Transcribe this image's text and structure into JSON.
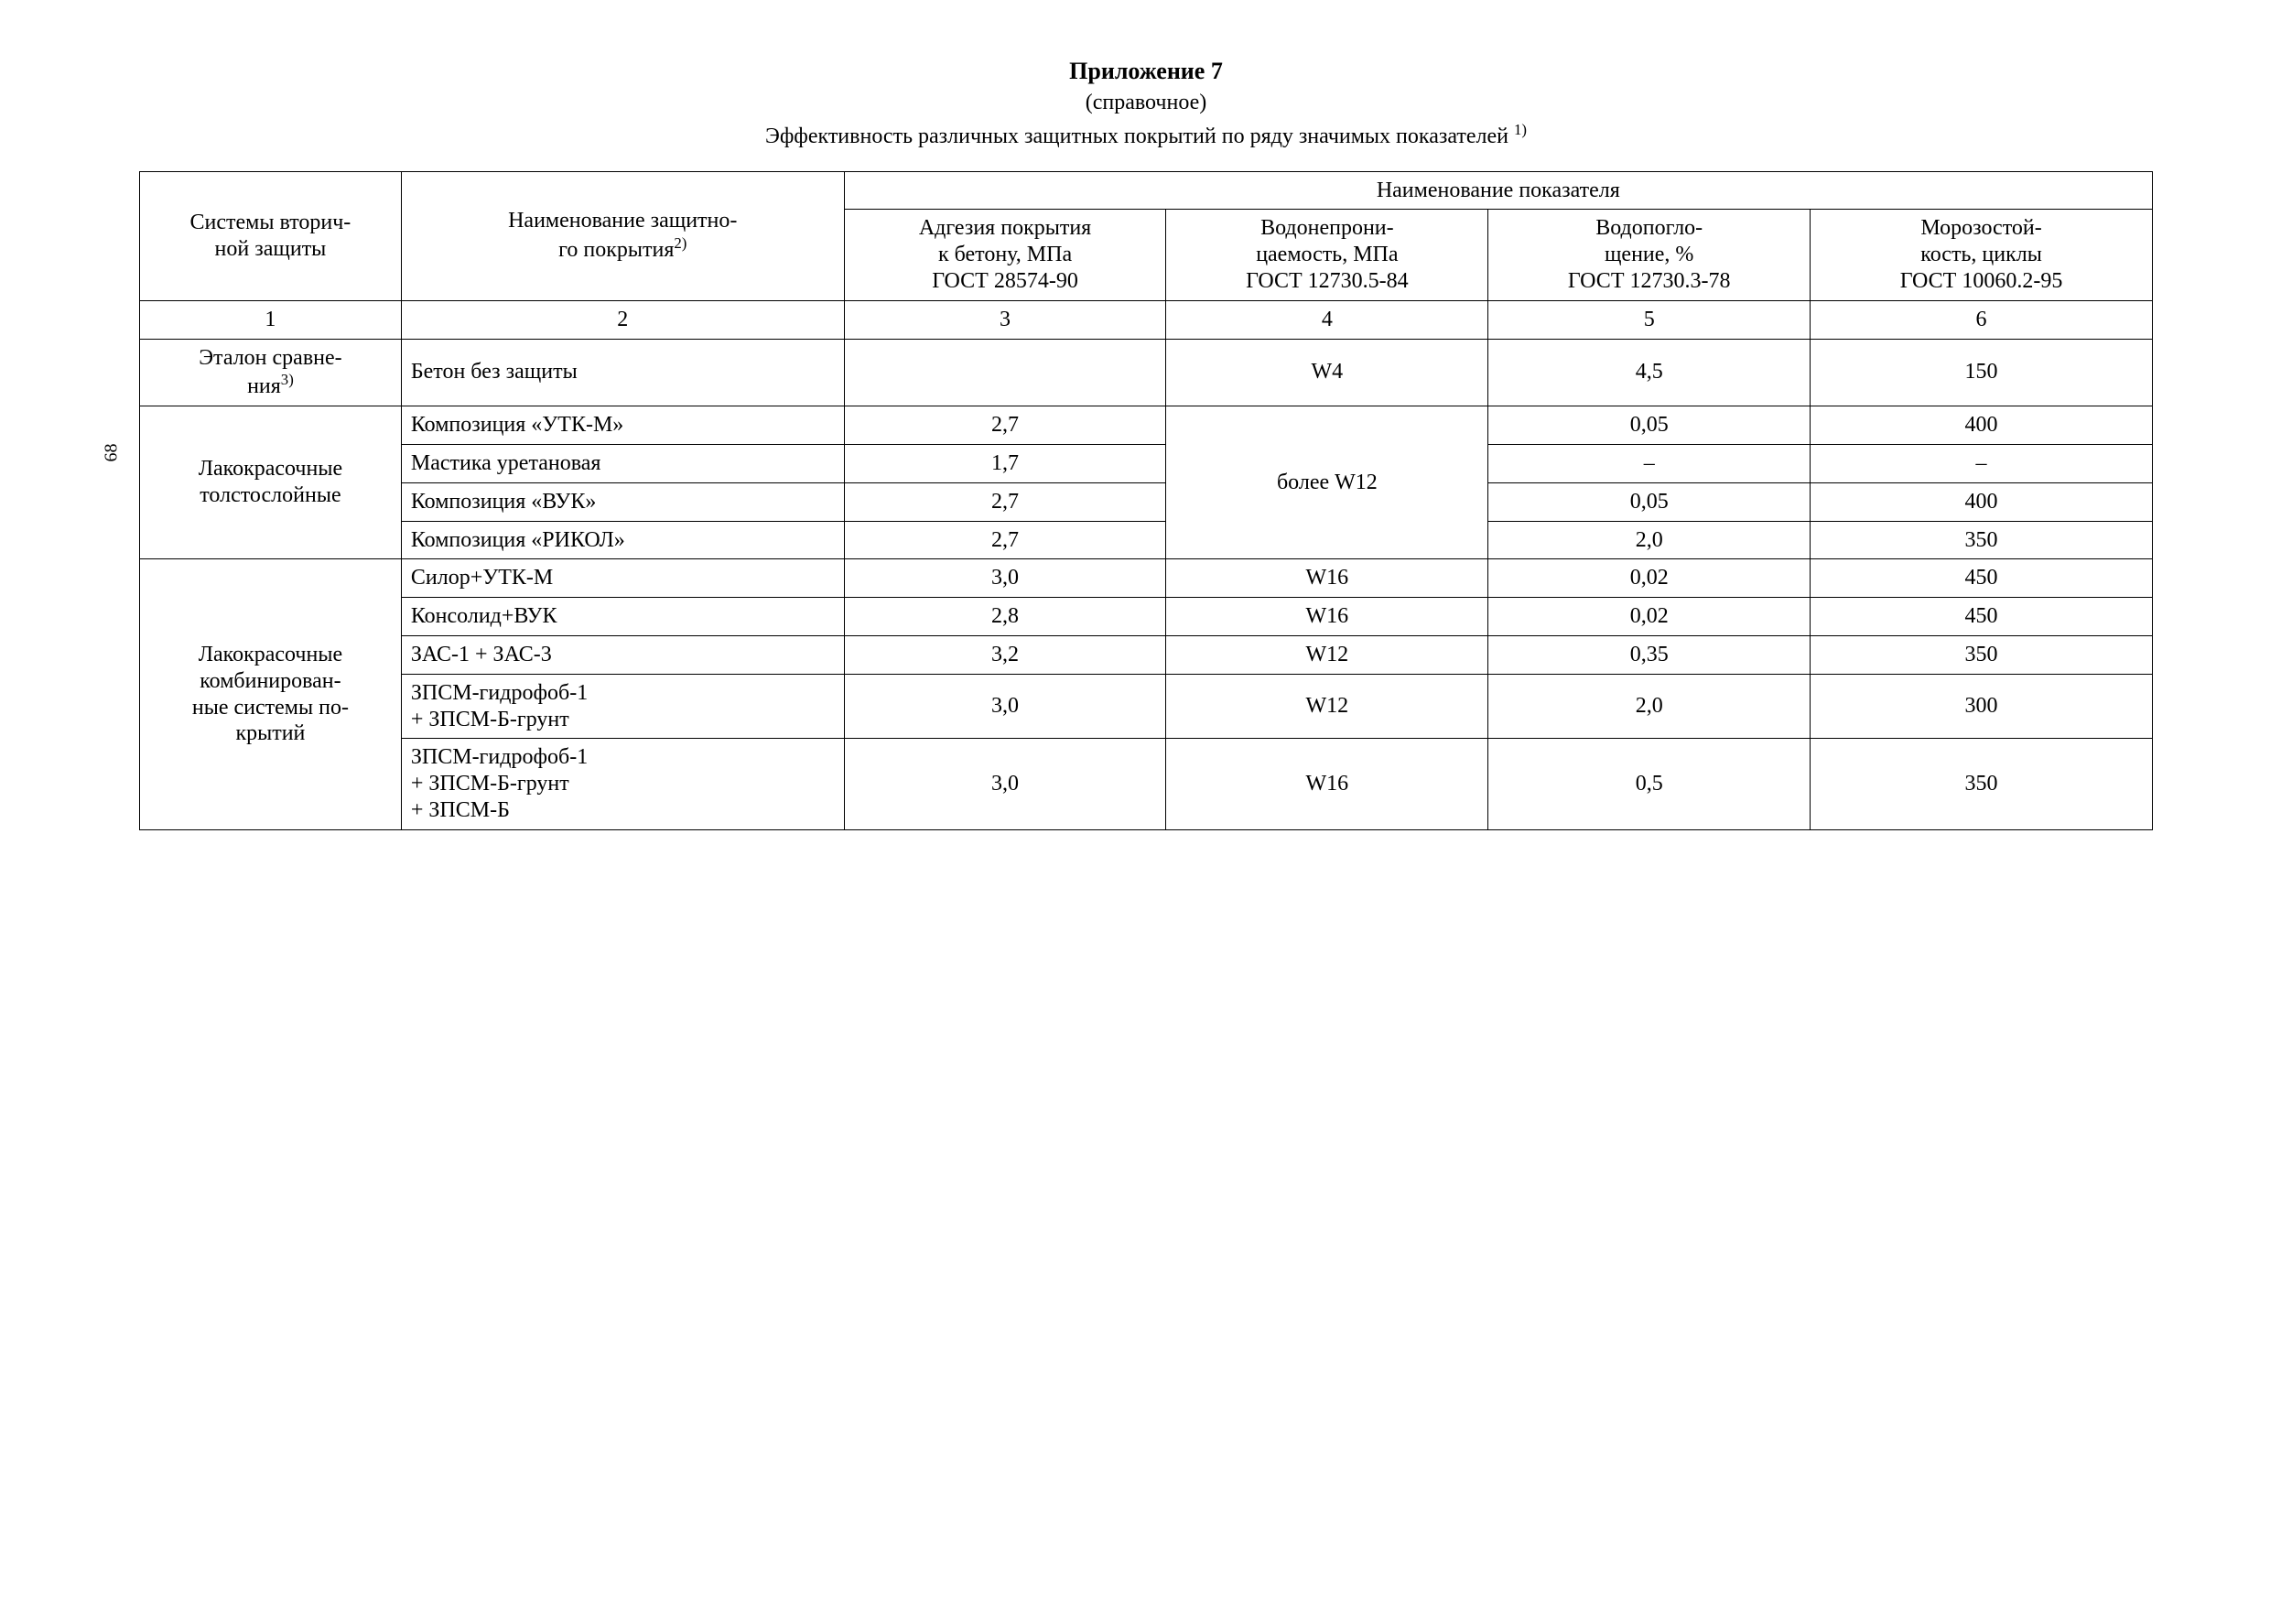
{
  "page_number": "68",
  "header": {
    "title": "Приложение 7",
    "subtitle": "(справочное)",
    "caption_text": "Эффективность различных защитных покрытий по ряду значимых показателей ",
    "caption_sup": "1)"
  },
  "table": {
    "head": {
      "col1": "Системы вторич-\nной защиты",
      "col2_text": "Наименование защитно-\nго покрытия",
      "col2_sup": "2)",
      "group": "Наименование показателя",
      "col3": "Адгезия покрытия\nк бетону, МПа\nГОСТ 28574-90",
      "col4": "Водонепрони-\nцаемость, МПа\nГОСТ 12730.5-84",
      "col5": "Водопогло-\nщение, %\nГОСТ 12730.3-78",
      "col6": "Морозостой-\nкость, циклы\nГОСТ 10060.2-95"
    },
    "numrow": {
      "c1": "1",
      "c2": "2",
      "c3": "3",
      "c4": "4",
      "c5": "5",
      "c6": "6"
    },
    "etalon": {
      "label_text": "Эталон сравне-\nния",
      "label_sup": "3)",
      "c2": "Бетон без защиты",
      "c3": "",
      "c4": "W4",
      "c5": "4,5",
      "c6": "150"
    },
    "group1": {
      "label": "Лакокрасочные\nтолстослойные",
      "merged_c4": "более W12",
      "rows": [
        {
          "c2": "Композиция «УТК-М»",
          "c3": "2,7",
          "c5": "0,05",
          "c6": "400"
        },
        {
          "c2": "Мастика уретановая",
          "c3": "1,7",
          "c5": "–",
          "c6": "–"
        },
        {
          "c2": "Композиция «ВУК»",
          "c3": "2,7",
          "c5": "0,05",
          "c6": "400"
        },
        {
          "c2": "Композиция «РИКОЛ»",
          "c3": "2,7",
          "c5": "2,0",
          "c6": "350"
        }
      ]
    },
    "group2": {
      "label": "Лакокрасочные\nкомбинирован-\nные системы по-\nкрытий",
      "rows": [
        {
          "c2": "Силор+УТК-М",
          "c3": "3,0",
          "c4": "W16",
          "c5": "0,02",
          "c6": "450"
        },
        {
          "c2": "Консолид+ВУК",
          "c3": "2,8",
          "c4": "W16",
          "c5": "0,02",
          "c6": "450"
        },
        {
          "c2": "ЗАС-1 + ЗАС-3",
          "c3": "3,2",
          "c4": "W12",
          "c5": "0,35",
          "c6": "350"
        },
        {
          "c2": "ЗПСМ-гидрофоб-1\n+ ЗПСМ-Б-грунт",
          "c3": "3,0",
          "c4": "W12",
          "c5": "2,0",
          "c6": "300"
        },
        {
          "c2": "ЗПСМ-гидрофоб-1\n+ ЗПСМ-Б-грунт\n+ ЗПСМ-Б",
          "c3": "3,0",
          "c4": "W16",
          "c5": "0,5",
          "c6": "350"
        }
      ]
    }
  }
}
